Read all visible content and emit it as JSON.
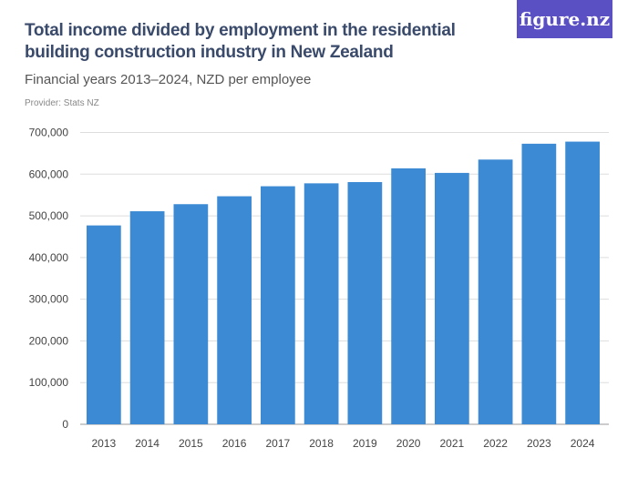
{
  "header": {
    "title": "Total income divided by employment in the residential building construction industry in New Zealand",
    "subtitle": "Financial years 2013–2024, NZD per employee",
    "provider": "Provider: Stats NZ",
    "logo": "figure.nz"
  },
  "colors": {
    "bar": "#3b8ad3",
    "logo_bg": "#5b4fc4"
  },
  "chart_data": {
    "type": "bar",
    "categories": [
      "2013",
      "2014",
      "2015",
      "2016",
      "2017",
      "2018",
      "2019",
      "2020",
      "2021",
      "2022",
      "2023",
      "2024"
    ],
    "values": [
      477000,
      511000,
      528000,
      547000,
      571000,
      578000,
      581000,
      614000,
      603000,
      635000,
      673000,
      678000
    ],
    "ylim": [
      0,
      700000
    ],
    "yticks": [
      "0",
      "100,000",
      "200,000",
      "300,000",
      "400,000",
      "500,000",
      "600,000",
      "700,000"
    ],
    "grid": true,
    "title": "Total income divided by employment in the residential building construction industry in New Zealand",
    "subtitle": "Financial years 2013–2024, NZD per employee"
  }
}
